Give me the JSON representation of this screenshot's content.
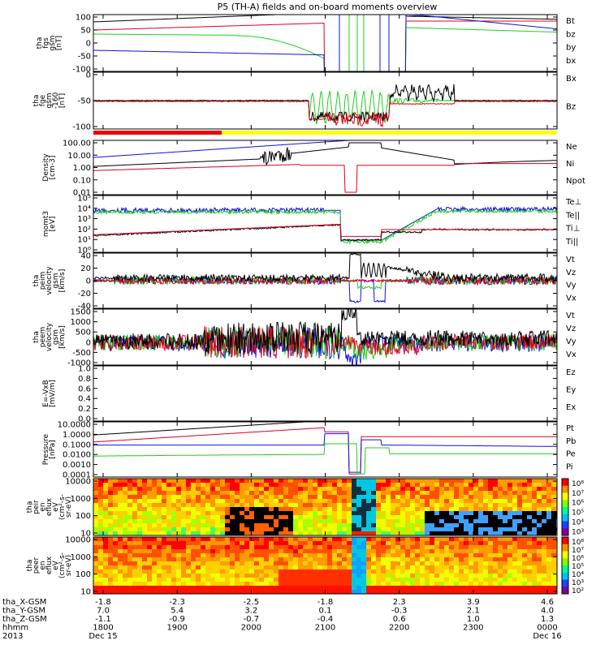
{
  "title": "P5 (TH-A) fields and on-board moments overview",
  "colors": {
    "black": "#000000",
    "red": "#e0001b",
    "green": "#1ed01e",
    "blue": "#1010e0",
    "status_red": "#ee0000",
    "status_yellow": "#ffff00"
  },
  "chart_data": [
    {
      "type": "line",
      "ylabel": [
        "tha",
        "fgs",
        "gsm",
        "[nT]"
      ],
      "ylim": [
        -100,
        100
      ],
      "yticks": [
        "100",
        "50",
        "0",
        "-50",
        "-100"
      ],
      "legend": [
        "Bt",
        "bz",
        "by",
        "bx"
      ]
    },
    {
      "type": "line",
      "ylabel": [
        "tha",
        "fge",
        "gsm",
        "-160",
        "[nT]"
      ],
      "ylim": [
        -130,
        30
      ],
      "yticks": [
        "0",
        "-50",
        "-100"
      ],
      "legend": [
        "Bx",
        "Bz"
      ]
    },
    {
      "type": "line",
      "ylabel": [
        "Density",
        "[cm-3]"
      ],
      "ylim_log": [
        0.003,
        300
      ],
      "yticks": [
        "100.00",
        "10.00",
        "1.00",
        "0.10",
        "0.01"
      ],
      "legend": [
        "Ne",
        "Ni",
        "Npot"
      ]
    },
    {
      "type": "line",
      "ylabel": [
        "momt3",
        "[eV]"
      ],
      "ylim_log": [
        1,
        100000
      ],
      "yticks": [
        "10⁵",
        "10⁴",
        "10³",
        "10²",
        "10¹",
        "10⁰"
      ],
      "legend": [
        "Te⊥",
        "Te||",
        "Ti⊥",
        "Ti||"
      ]
    },
    {
      "type": "line",
      "ylabel": [
        "tha",
        "peim",
        "velocity",
        "gsm",
        "[km/s]"
      ],
      "ylim": [
        -40,
        40
      ],
      "yticks": [
        "40",
        "20",
        "0",
        "-20",
        "-40"
      ],
      "legend": [
        "Vt",
        "Vz",
        "Vy",
        "Vx"
      ]
    },
    {
      "type": "line",
      "ylabel": [
        "tha",
        "peem",
        "velocity",
        "gsm",
        "[km/s]"
      ],
      "ylim": [
        -1000,
        1500
      ],
      "yticks": [
        "1500",
        "1000",
        "500",
        "0",
        "-500",
        "-1000"
      ],
      "legend": [
        "Vt",
        "Vz",
        "Vy",
        "Vx"
      ]
    },
    {
      "type": "line",
      "ylabel": [
        "E=-VxB",
        "[mV/m]"
      ],
      "ylim": [
        0,
        1
      ],
      "yticks": [
        "1.0",
        "0.8",
        "0.6",
        "0.4",
        "0.2",
        "0.0"
      ],
      "legend": [
        "Ez",
        "Ey",
        "Ex"
      ]
    },
    {
      "type": "line",
      "ylabel": [
        "Pressure",
        "[nPa]"
      ],
      "ylim_log": [
        0.0001,
        30
      ],
      "yticks": [
        "10.0000",
        "1.0000",
        "0.1000",
        "0.0100",
        "0.0010",
        "0.0001"
      ],
      "legend": [
        "Pt",
        "Pb",
        "Pe",
        "Pi"
      ]
    },
    {
      "type": "heatmap",
      "ylabel": [
        "tha",
        "peir",
        "en",
        "eflux",
        "eV",
        "(cm²-s-",
        "sr-eV)"
      ],
      "ylim_log": [
        5,
        30000
      ],
      "yticks": [
        "10000",
        "1000",
        "100",
        "10"
      ],
      "colorbar": [
        "10⁸",
        "10⁷",
        "10⁶",
        "10⁵",
        "10⁴",
        "10³"
      ]
    },
    {
      "type": "heatmap",
      "ylabel": [
        "tha",
        "peer",
        "en",
        "eflux",
        "eV",
        "(cm²-s-",
        "sr-eV)"
      ],
      "ylim_log": [
        5,
        30000
      ],
      "yticks": [
        "10000",
        "1000",
        "100",
        "10"
      ],
      "colorbar": [
        "10⁸",
        "10⁷",
        "10⁶",
        "10⁵",
        "10⁴",
        "10³",
        "10²"
      ]
    }
  ],
  "xaxis": {
    "row_labels": [
      "tha_X-GSM",
      "tha_Y-GSM",
      "tha_Z-GSM",
      "hhmm",
      "2013"
    ],
    "columns": [
      [
        "-1.8",
        "7.0",
        "-1.1",
        "1800",
        "Dec 15"
      ],
      [
        "-2.3",
        "5.4",
        "-0.9",
        "1900",
        ""
      ],
      [
        "-2.5",
        "3.2",
        "-0.7",
        "2000",
        ""
      ],
      [
        "-1.8",
        "0.1",
        "-0.4",
        "2100",
        ""
      ],
      [
        "2.3",
        "-0.3",
        "0.6",
        "2200",
        ""
      ],
      [
        "3.9",
        "2.1",
        "1.0",
        "2300",
        ""
      ],
      [
        "4.6",
        "4.0",
        "1.3",
        "0000",
        "Dec 16"
      ]
    ]
  }
}
